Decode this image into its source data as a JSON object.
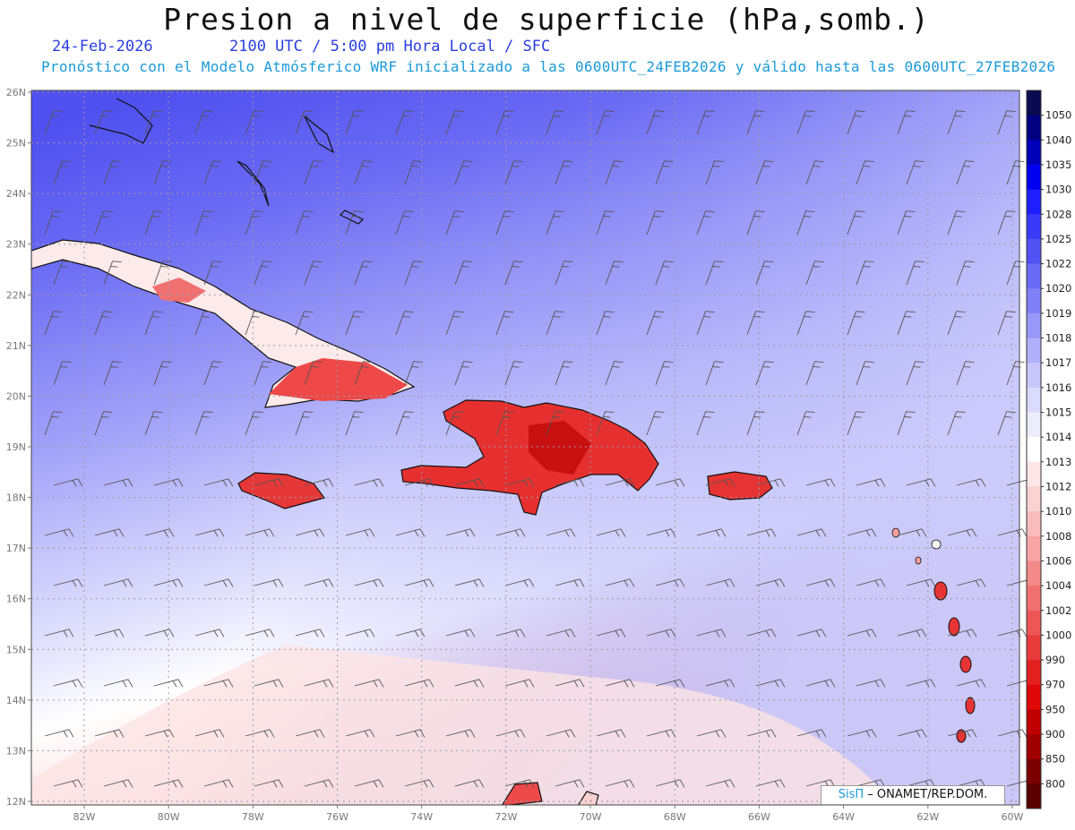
{
  "title": "Presion a nivel de superficie (hPa,somb.)",
  "date": "24-Feb-2026",
  "time_line": "2100 UTC / 5:00 pm Hora Local / SFC",
  "forecast_line": "Pronóstico con el Modelo Atmósferico WRF inicializado a las 0600UTC_24FEB2026 y válido hasta las  0600UTC_27FEB2026",
  "lat_labels": [
    "26N",
    "25N",
    "24N",
    "23N",
    "22N",
    "21N",
    "20N",
    "19N",
    "18N",
    "17N",
    "16N",
    "15N",
    "14N",
    "13N",
    "12N"
  ],
  "lon_labels": [
    "82W",
    "80W",
    "78W",
    "76W",
    "74W",
    "72W",
    "70W",
    "68W",
    "66W",
    "64W",
    "62W",
    "60W"
  ],
  "colorbar": [
    {
      "label": "1050",
      "color": "#0a0a50"
    },
    {
      "label": "1040",
      "color": "#000080"
    },
    {
      "label": "1035",
      "color": "#0000b8"
    },
    {
      "label": "1030",
      "color": "#0000ee"
    },
    {
      "label": "1028",
      "color": "#1e1eff"
    },
    {
      "label": "1025",
      "color": "#3a3af8"
    },
    {
      "label": "1022",
      "color": "#5252f2"
    },
    {
      "label": "1020",
      "color": "#6a6af4"
    },
    {
      "label": "1019",
      "color": "#8080f6"
    },
    {
      "label": "1018",
      "color": "#9898f8"
    },
    {
      "label": "1017",
      "color": "#b0b0fa"
    },
    {
      "label": "1016",
      "color": "#c6c6fb"
    },
    {
      "label": "1015",
      "color": "#dadafc"
    },
    {
      "label": "1014",
      "color": "#ececfd"
    },
    {
      "label": "1013",
      "color": "#ffffff"
    },
    {
      "label": "1012",
      "color": "#fde6e6"
    },
    {
      "label": "1010",
      "color": "#fbd2d2"
    },
    {
      "label": "1008",
      "color": "#f9bcbc"
    },
    {
      "label": "1006",
      "color": "#f6a4a4"
    },
    {
      "label": "1004",
      "color": "#f38a8a"
    },
    {
      "label": "1002",
      "color": "#f07070"
    },
    {
      "label": "1000",
      "color": "#ec5656"
    },
    {
      "label": "990",
      "color": "#e83c3c"
    },
    {
      "label": "970",
      "color": "#e42020"
    },
    {
      "label": "950",
      "color": "#de0808"
    },
    {
      "label": "900",
      "color": "#c00000"
    },
    {
      "label": "850",
      "color": "#a00000"
    },
    {
      "label": "800",
      "color": "#7a0000"
    },
    {
      "label": "",
      "color": "#5a0000"
    }
  ],
  "credit": {
    "brand": "SisΠ",
    "rest": "– ONAMET/REP.DOM."
  }
}
